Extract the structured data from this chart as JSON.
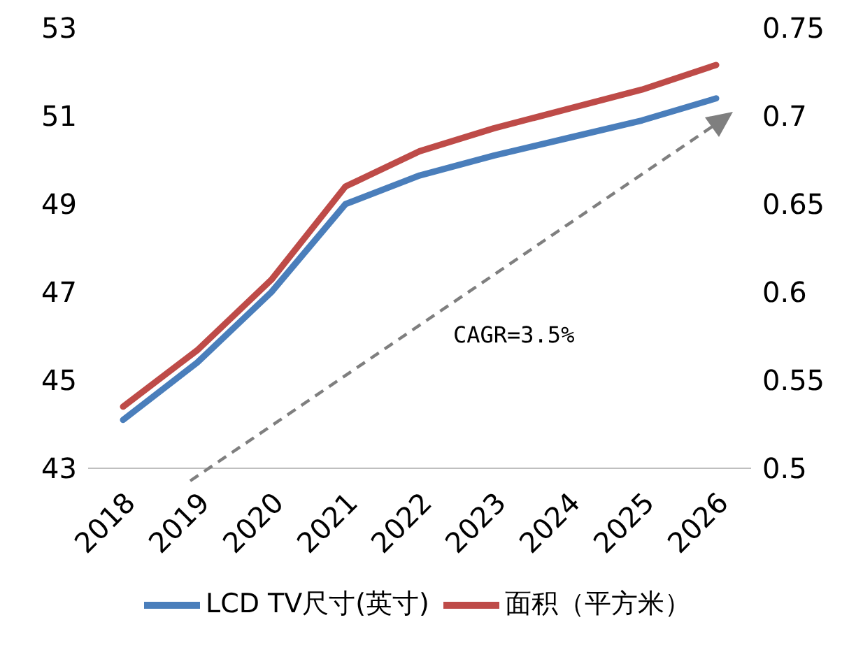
{
  "chart_data": {
    "type": "line",
    "categories": [
      "2018",
      "2019",
      "2020",
      "2021",
      "2022",
      "2023",
      "2024",
      "2025",
      "2026"
    ],
    "series": [
      {
        "name": "LCD TV尺寸(英寸)",
        "color": "#4a7ebb",
        "values": [
          44.1,
          45.4,
          47.0,
          49.0,
          49.65,
          50.1,
          50.5,
          50.9,
          51.4
        ]
      },
      {
        "name": "面积（平方米）",
        "color": "#be4b48",
        "axis": "y2",
        "values": [
          0.535,
          0.567,
          0.607,
          0.66,
          0.68,
          0.693,
          0.704,
          0.715,
          0.729
        ]
      }
    ],
    "ylim": [
      43,
      53
    ],
    "yticks": [
      43,
      45,
      47,
      49,
      51,
      53
    ],
    "y2lim": [
      0.5,
      0.75
    ],
    "y2ticks": [
      0.5,
      0.55,
      0.6,
      0.65,
      0.7,
      0.75
    ],
    "annotations": [
      "CAGR=3.5%"
    ],
    "legend": "bottom",
    "marker": "none",
    "line_style": "solid"
  }
}
